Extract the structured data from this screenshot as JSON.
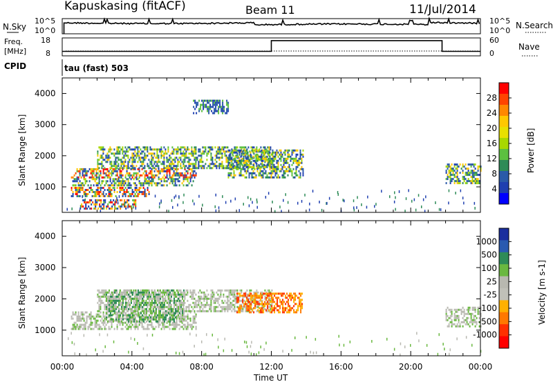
{
  "header": {
    "station": "Kapuskasing (fitACF)",
    "beam": "Beam 11",
    "date": "11/Jul/2014"
  },
  "noise_panel": {
    "left_label": "N.Sky",
    "right_label": "N.Search",
    "left_ticks": [
      "10^5",
      "10^0"
    ],
    "right_ticks": [
      "10^5",
      "10^0"
    ]
  },
  "freq_panel": {
    "left_label_line1": "Freq.",
    "left_label_line2": "[MHz]",
    "right_label": "Nave",
    "left_ticks": [
      "18",
      "8"
    ],
    "right_ticks": [
      "60",
      "0"
    ],
    "freq_steps": [
      {
        "from_h": 0,
        "to_h": 12,
        "value": 0.25
      },
      {
        "from_h": 12,
        "to_h": 21.8,
        "value": 0.85
      },
      {
        "from_h": 21.8,
        "to_h": 24,
        "value": 0.25
      }
    ]
  },
  "cpid": {
    "label": "CPID",
    "program": "tau (fast) 503"
  },
  "x_axis": {
    "title": "Time UT",
    "ticks": [
      "00:00",
      "04:00",
      "08:00",
      "12:00",
      "16:00",
      "20:00",
      "00:00"
    ],
    "range_hours": [
      0,
      24
    ]
  },
  "power_panel": {
    "ylabel": "Slant Range [km]",
    "yticks": [
      "4000",
      "3000",
      "2000",
      "1000"
    ],
    "colorbar_label": "Power [dB]",
    "colorbar_ticks": [
      "28",
      "24",
      "20",
      "16",
      "12",
      "8",
      "4"
    ],
    "colors": [
      "#ff0000",
      "#ff4400",
      "#ff8800",
      "#ffc800",
      "#e8e000",
      "#a8d800",
      "#5cc040",
      "#2e8b57",
      "#2a5aa8",
      "#1f3fb0",
      "#0000ff"
    ]
  },
  "velocity_panel": {
    "ylabel": "Slant Range [km]",
    "yticks": [
      "4000",
      "3000",
      "2000",
      "1000"
    ],
    "colorbar_label": "Velocity [m s-1]",
    "colorbar_ticks": [
      "1000",
      "500",
      "100",
      "25",
      "-25",
      "-100",
      "-500",
      "-1000"
    ],
    "colors": [
      "#1a2e9e",
      "#2a5ab0",
      "#2e8b57",
      "#6ab840",
      "#b8b8b0",
      "#c0c0b8",
      "#ffb000",
      "#ff7800",
      "#ff3000",
      "#ff0000"
    ]
  },
  "chart_data": {
    "type": "heatmap",
    "x_unit": "hours UT",
    "y_unit": "km",
    "ylim": [
      180,
      4500
    ],
    "power_regions": [
      {
        "t0": 0.5,
        "t1": 7.7,
        "r0": 1300,
        "r1": 1600,
        "level": "high"
      },
      {
        "t0": 0.5,
        "t1": 7.5,
        "r0": 1050,
        "r1": 1280,
        "level": "mid"
      },
      {
        "t0": 0.5,
        "t1": 5.0,
        "r0": 680,
        "r1": 1000,
        "level": "high"
      },
      {
        "t0": 1.0,
        "t1": 4.2,
        "r0": 300,
        "r1": 600,
        "level": "high"
      },
      {
        "t0": 2.0,
        "t1": 12.0,
        "r0": 1600,
        "r1": 2300,
        "level": "mid"
      },
      {
        "t0": 9.5,
        "t1": 13.8,
        "r0": 1300,
        "r1": 2200,
        "level": "mid"
      },
      {
        "t0": 22.0,
        "t1": 24.0,
        "r0": 1100,
        "r1": 1750,
        "level": "mid"
      },
      {
        "t0": 7.5,
        "t1": 9.5,
        "r0": 3400,
        "r1": 3800,
        "level": "low"
      }
    ],
    "velocity_regions": [
      {
        "t0": 0.5,
        "t1": 7.7,
        "r0": 1050,
        "r1": 1600,
        "class": "near-zero"
      },
      {
        "t0": 2.0,
        "t1": 12.0,
        "r0": 1600,
        "r1": 2300,
        "class": "near-zero"
      },
      {
        "t0": 10.0,
        "t1": 13.8,
        "r0": 1600,
        "r1": 2200,
        "class": "negative"
      },
      {
        "t0": 2.5,
        "t1": 7.0,
        "r0": 1300,
        "r1": 2300,
        "class": "positive"
      },
      {
        "t0": 22.0,
        "t1": 24.0,
        "r0": 1100,
        "r1": 1750,
        "class": "near-zero"
      }
    ]
  }
}
